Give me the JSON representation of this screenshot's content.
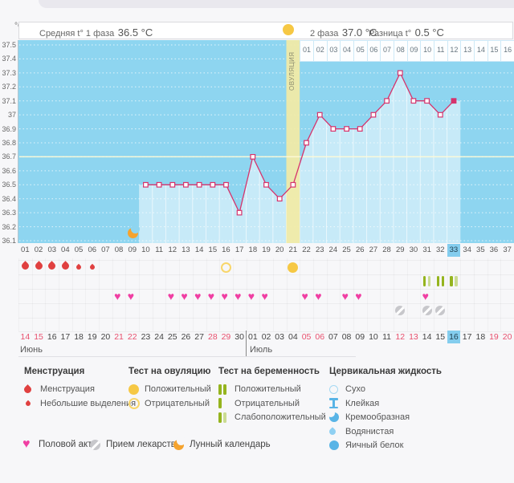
{
  "header": {
    "unit": "°C",
    "phase1_label": "Средняя t° 1 фаза",
    "phase1_value": "36.5 °C",
    "phase2_label": "2 фаза",
    "phase2_value": "37.0 °C",
    "diff_label": "Разница t°",
    "diff_value": "0.5 °C",
    "ovulation_label": "ОВУЛЯЦИЯ"
  },
  "chart_data": {
    "type": "line",
    "ylabel": "°C",
    "ylim": [
      36.1,
      37.5
    ],
    "ytick_step": 0.1,
    "day_count": 37,
    "coverline": 36.7,
    "ovulation_day": 21,
    "selected_day": 33,
    "moon_day": 9,
    "dpo_labels": [
      "01",
      "02",
      "03",
      "04",
      "05",
      "06",
      "07",
      "08",
      "09",
      "10",
      "11",
      "12",
      "13",
      "14",
      "15",
      "16"
    ],
    "series": [
      {
        "name": "temperature",
        "points": [
          {
            "day": 10,
            "temp": 36.5
          },
          {
            "day": 11,
            "temp": 36.5
          },
          {
            "day": 12,
            "temp": 36.5
          },
          {
            "day": 13,
            "temp": 36.5
          },
          {
            "day": 14,
            "temp": 36.5
          },
          {
            "day": 15,
            "temp": 36.5
          },
          {
            "day": 16,
            "temp": 36.5
          },
          {
            "day": 17,
            "temp": 36.3
          },
          {
            "day": 18,
            "temp": 36.7
          },
          {
            "day": 19,
            "temp": 36.5
          },
          {
            "day": 20,
            "temp": 36.4
          },
          {
            "day": 21,
            "temp": 36.5
          },
          {
            "day": 22,
            "temp": 36.8
          },
          {
            "day": 23,
            "temp": 37.0
          },
          {
            "day": 24,
            "temp": 36.9
          },
          {
            "day": 25,
            "temp": 36.9
          },
          {
            "day": 26,
            "temp": 36.9
          },
          {
            "day": 27,
            "temp": 37.0
          },
          {
            "day": 28,
            "temp": 37.1
          },
          {
            "day": 29,
            "temp": 37.3
          },
          {
            "day": 30,
            "temp": 37.1
          },
          {
            "day": 31,
            "temp": 37.1
          },
          {
            "day": 32,
            "temp": 37.0
          },
          {
            "day": 33,
            "temp": 37.1
          }
        ]
      }
    ]
  },
  "rows": {
    "menstruation_large_days": [
      1,
      2,
      3,
      4
    ],
    "menstruation_small_days": [
      5,
      6
    ],
    "ovulation_test_negative_days": [
      16
    ],
    "ovulation_test_positive_days": [
      21
    ],
    "pregnancy_test_weak_days": [
      31,
      33
    ],
    "pregnancy_test_positive_days": [
      32
    ],
    "intercourse_days": [
      8,
      9,
      12,
      13,
      14,
      15,
      16,
      17,
      18,
      19,
      22,
      23,
      25,
      26,
      31
    ],
    "medication_days": [
      29,
      31,
      32
    ]
  },
  "calendar": {
    "june": {
      "label": "Июнь",
      "dates": [
        "14",
        "15",
        "16",
        "17",
        "18",
        "19",
        "20",
        "21",
        "22",
        "23",
        "24",
        "25",
        "26",
        "27",
        "28",
        "29",
        "30"
      ],
      "weekend": [
        "14",
        "15",
        "21",
        "22",
        "28",
        "29"
      ]
    },
    "july": {
      "label": "Июль",
      "dates": [
        "01",
        "02",
        "03",
        "04",
        "05",
        "06",
        "07",
        "08",
        "09",
        "10",
        "11",
        "12",
        "13",
        "14",
        "15",
        "16",
        "17",
        "18",
        "19",
        "20"
      ],
      "weekend": [
        "05",
        "06",
        "12",
        "13",
        "19",
        "20"
      ],
      "selected": "16"
    }
  },
  "legend": {
    "columns": [
      {
        "title": "Менструация",
        "items": [
          {
            "icon": "drop-large-icon",
            "label": "Менструация"
          },
          {
            "icon": "drop-small-icon",
            "label": "Небольшие выделения"
          }
        ]
      },
      {
        "title": "Тест на овуляцию",
        "items": [
          {
            "icon": "ovulation-positive-icon",
            "label": "Положительный"
          },
          {
            "icon": "ovulation-negative-icon",
            "label": "Отрицательный"
          }
        ]
      },
      {
        "title": "Тест на беременность",
        "items": [
          {
            "icon": "pregnancy-positive-icon",
            "label": "Положительный"
          },
          {
            "icon": "pregnancy-negative-icon",
            "label": "Отрицательный"
          },
          {
            "icon": "pregnancy-weak-icon",
            "label": "Слабоположительный"
          }
        ]
      },
      {
        "title": "Цервикальная жидкость",
        "items": [
          {
            "icon": "cf-dry-icon",
            "label": "Сухо"
          },
          {
            "icon": "cf-sticky-icon",
            "label": "Клейкая"
          },
          {
            "icon": "cf-creamy-icon",
            "label": "Кремообразная"
          },
          {
            "icon": "cf-watery-icon",
            "label": "Водянистая"
          },
          {
            "icon": "cf-eggwhite-icon",
            "label": "Яичный белок"
          }
        ]
      }
    ],
    "bottom": [
      {
        "icon": "heart-icon",
        "label": "Половой акт"
      },
      {
        "icon": "pill-icon",
        "label": "Прием лекарств"
      },
      {
        "icon": "moon-icon",
        "label": "Лунный календарь"
      }
    ]
  },
  "colors": {
    "chart_bg": "#8ed5f0",
    "shade": "rgba(255,255,255,0.5)",
    "ovulation_band": "#f2eba6",
    "line": "#d6336c",
    "coverline": "rgba(253,250,215,0.95)",
    "selected": "#84cdee",
    "weekend_date": "#e8506e",
    "heart": "#f03fa3",
    "drop": "#e04040",
    "test_green": "#95b41e",
    "test_green_pale": "#cbdc92",
    "moon": "#f5a32e",
    "cervical_blue": "#58b4e6",
    "yellow_circle": "#f6c844"
  }
}
